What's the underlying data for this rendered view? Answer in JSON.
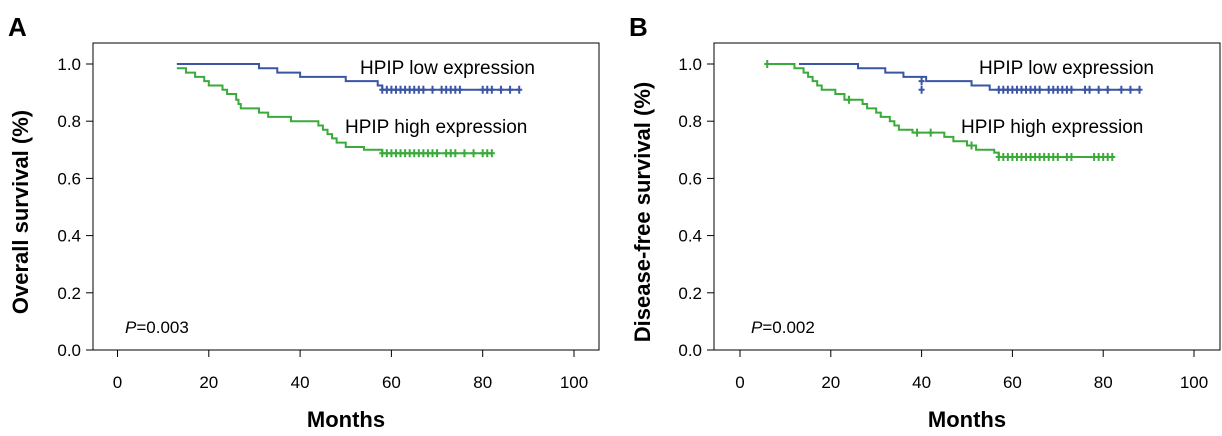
{
  "chart_data": [
    {
      "type": "line",
      "panel_label": "A",
      "xlabel": "Months",
      "ylabel": "Overall survival (%)",
      "xlim": [
        0,
        100
      ],
      "ylim": [
        0.0,
        1.0
      ],
      "x_ticks": [
        0,
        20,
        40,
        60,
        80,
        100
      ],
      "y_ticks": [
        "0.0",
        "0.2",
        "0.4",
        "0.6",
        "0.8",
        "1.0"
      ],
      "grid": false,
      "p_value": {
        "prefix": "P",
        "text": "=0.003"
      },
      "series": [
        {
          "name": "HPIP low expression",
          "color": "#3a55a4",
          "steps": [
            [
              13,
              1.0
            ],
            [
              31,
              0.985
            ],
            [
              35,
              0.97
            ],
            [
              40,
              0.955
            ],
            [
              50,
              0.94
            ],
            [
              57,
              0.925
            ],
            [
              58,
              0.91
            ],
            [
              88,
              0.91
            ]
          ],
          "censor_x": [
            58,
            59,
            60,
            61,
            62,
            63,
            64,
            65,
            66,
            67,
            69,
            71,
            72,
            73,
            74,
            75,
            80,
            81,
            82,
            84,
            86,
            88
          ],
          "censor_y": 0.91
        },
        {
          "name": "HPIP high expression",
          "color": "#3aaa3a",
          "steps": [
            [
              13,
              0.985
            ],
            [
              15,
              0.97
            ],
            [
              17,
              0.955
            ],
            [
              19,
              0.94
            ],
            [
              20,
              0.925
            ],
            [
              23,
              0.91
            ],
            [
              24,
              0.895
            ],
            [
              26,
              0.875
            ],
            [
              26.5,
              0.86
            ],
            [
              27,
              0.845
            ],
            [
              31,
              0.83
            ],
            [
              33,
              0.815
            ],
            [
              38,
              0.8
            ],
            [
              44,
              0.785
            ],
            [
              45,
              0.77
            ],
            [
              46,
              0.755
            ],
            [
              47,
              0.74
            ],
            [
              48,
              0.725
            ],
            [
              50,
              0.71
            ],
            [
              54,
              0.7
            ],
            [
              58,
              0.688
            ],
            [
              82,
              0.688
            ]
          ],
          "censor_x": [
            58,
            59,
            60,
            61,
            62,
            63,
            64,
            65,
            66,
            67,
            68,
            69,
            70,
            72,
            73,
            74,
            76,
            78,
            80,
            81,
            82
          ],
          "censor_y": 0.688
        }
      ]
    },
    {
      "type": "line",
      "panel_label": "B",
      "xlabel": "Months",
      "ylabel": "Disease-free survival (%)",
      "xlim": [
        0,
        100
      ],
      "ylim": [
        0.0,
        1.0
      ],
      "x_ticks": [
        0,
        20,
        40,
        60,
        80,
        100
      ],
      "y_ticks": [
        "0.0",
        "0.2",
        "0.4",
        "0.6",
        "0.8",
        "1.0"
      ],
      "grid": false,
      "p_value": {
        "prefix": "P",
        "text": "=0.002"
      },
      "series": [
        {
          "name": "HPIP low expression",
          "color": "#3a55a4",
          "steps": [
            [
              13,
              1.0
            ],
            [
              26,
              0.985
            ],
            [
              32,
              0.97
            ],
            [
              36,
              0.955
            ],
            [
              41,
              0.94
            ],
            [
              51,
              0.925
            ],
            [
              55,
              0.91
            ],
            [
              88,
              0.91
            ]
          ],
          "censor_x": [
            40,
            57,
            58,
            59,
            60,
            61,
            62,
            63,
            64,
            65,
            66,
            68,
            69,
            70,
            71,
            72,
            73,
            76,
            77,
            79,
            81,
            84,
            86,
            88
          ],
          "censor_y": 0.91,
          "censor_extra": [
            [
              40,
              0.94
            ]
          ]
        },
        {
          "name": "HPIP high expression",
          "color": "#3aaa3a",
          "steps": [
            [
              6,
              1.0
            ],
            [
              12,
              0.985
            ],
            [
              14,
              0.97
            ],
            [
              15,
              0.955
            ],
            [
              16,
              0.94
            ],
            [
              17,
              0.925
            ],
            [
              18,
              0.91
            ],
            [
              21,
              0.895
            ],
            [
              23,
              0.875
            ],
            [
              27,
              0.86
            ],
            [
              28,
              0.845
            ],
            [
              30,
              0.83
            ],
            [
              31,
              0.815
            ],
            [
              33,
              0.8
            ],
            [
              34,
              0.785
            ],
            [
              35,
              0.77
            ],
            [
              38,
              0.76
            ],
            [
              45,
              0.745
            ],
            [
              47,
              0.73
            ],
            [
              50,
              0.715
            ],
            [
              52,
              0.7
            ],
            [
              56,
              0.69
            ],
            [
              57,
              0.675
            ],
            [
              82,
              0.675
            ]
          ],
          "censor_x": [
            57,
            58,
            59,
            60,
            61,
            62,
            63,
            64,
            65,
            66,
            67,
            68,
            69,
            70,
            72,
            73,
            78,
            79,
            80,
            81,
            82
          ],
          "censor_y": 0.675,
          "censor_extra": [
            [
              6,
              1.0
            ],
            [
              24,
              0.875
            ],
            [
              39,
              0.76
            ],
            [
              42,
              0.76
            ],
            [
              51,
              0.715
            ]
          ]
        }
      ]
    }
  ]
}
